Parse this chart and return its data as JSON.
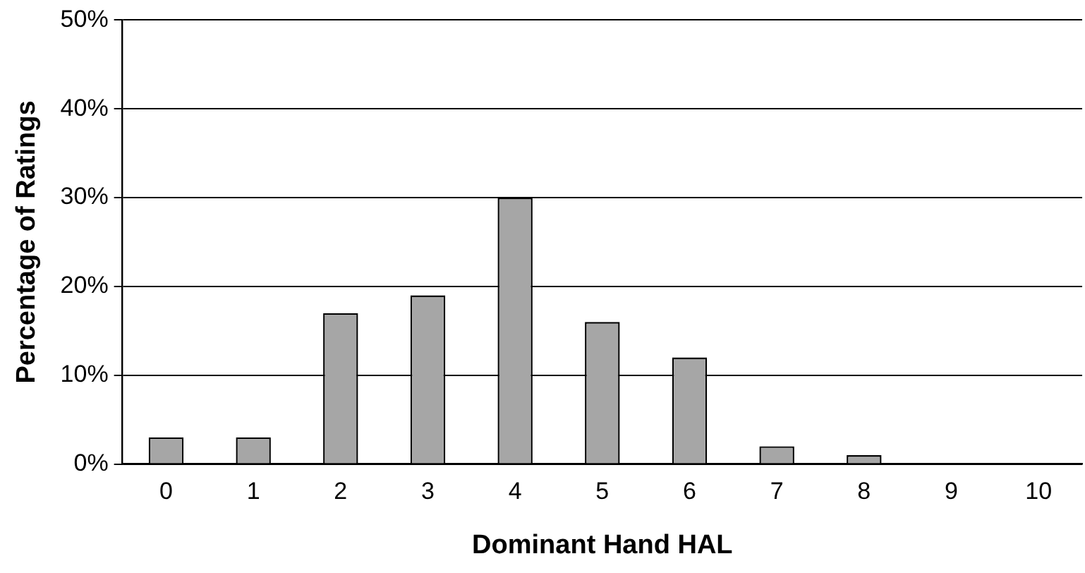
{
  "chart_data": {
    "type": "bar",
    "xlabel": "Dominant Hand HAL",
    "ylabel": "Percentage of Ratings",
    "categories": [
      "0",
      "1",
      "2",
      "3",
      "4",
      "5",
      "6",
      "7",
      "8",
      "9",
      "10"
    ],
    "values": [
      3,
      3,
      17,
      19,
      30,
      16,
      12,
      2,
      1,
      0,
      0
    ],
    "color": "#a6a6a6",
    "ylim": [
      0,
      50
    ],
    "yticks": [
      {
        "value": 0,
        "label": "0%"
      },
      {
        "value": 10,
        "label": "10%"
      },
      {
        "value": 20,
        "label": "20%"
      },
      {
        "value": 30,
        "label": "30%"
      },
      {
        "value": 40,
        "label": "40%"
      },
      {
        "value": 50,
        "label": "50%"
      }
    ],
    "grid": "y",
    "legend": false
  }
}
